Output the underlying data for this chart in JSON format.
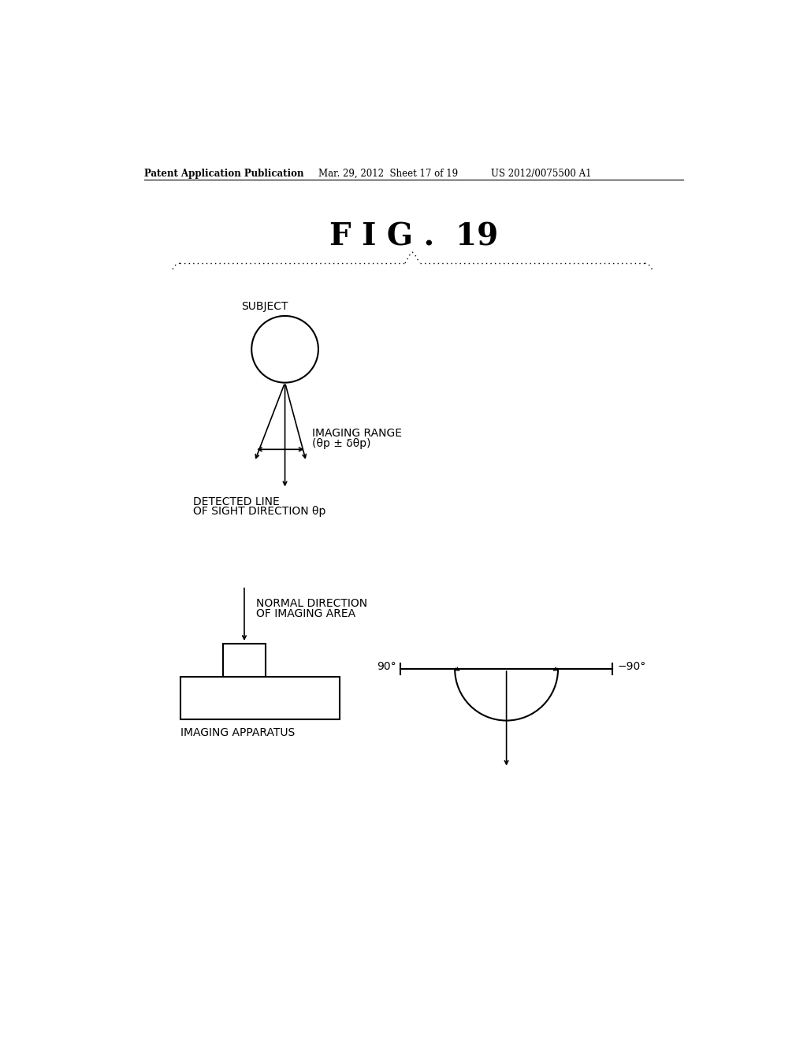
{
  "title": "F I G .  19",
  "header_left": "Patent Application Publication",
  "header_mid": "Mar. 29, 2012  Sheet 17 of 19",
  "header_right": "US 2012/0075500 A1",
  "bg_color": "#ffffff",
  "text_color": "#000000",
  "label_subject": "SUBJECT",
  "label_imaging_range": "IMAGING RANGE",
  "label_imaging_range2": "(θp ± δθp)",
  "label_detected": "DETECTED LINE",
  "label_detected2": "OF SIGHT DIRECTION θp",
  "label_normal": "NORMAL DIRECTION",
  "label_normal2": "OF IMAGING AREA",
  "label_apparatus": "IMAGING APPARATUS",
  "label_90": "90°",
  "label_neg90": "−90°"
}
